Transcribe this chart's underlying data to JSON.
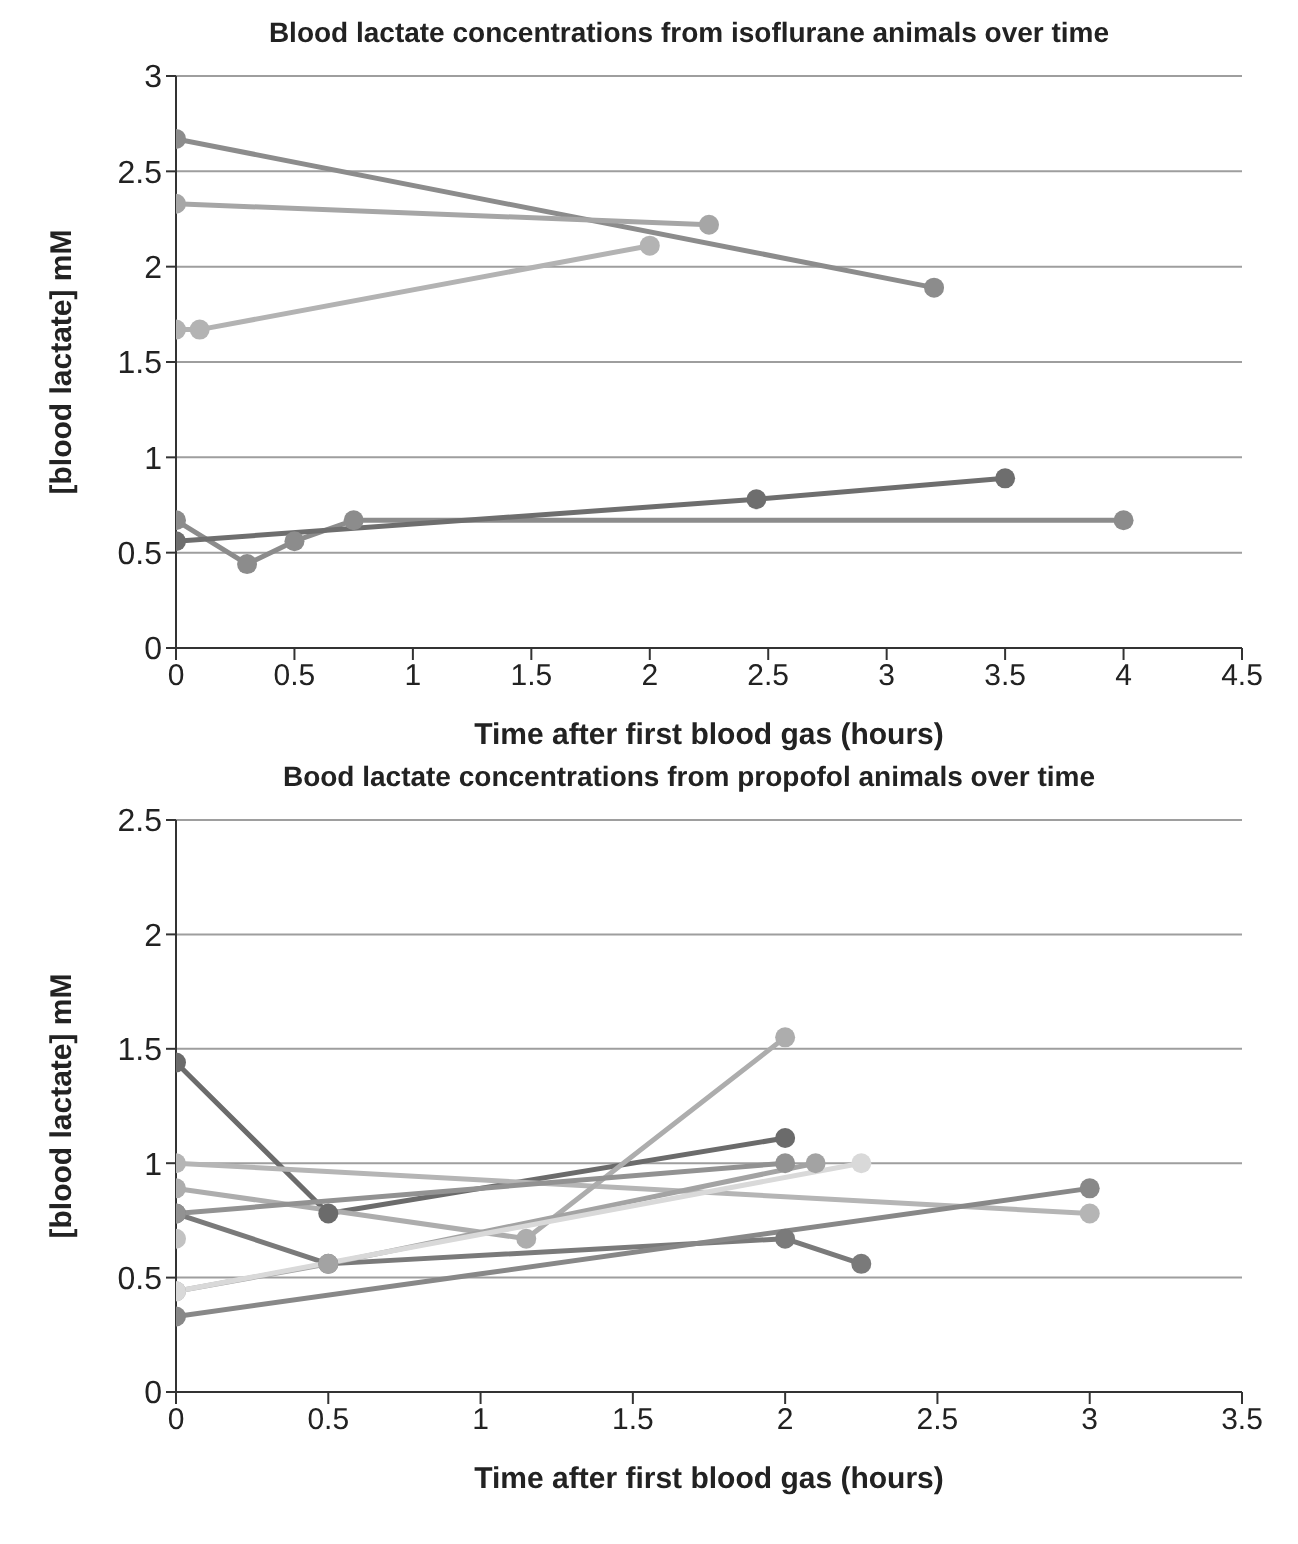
{
  "chart_data": [
    {
      "type": "line",
      "title": "Blood lactate concentrations from isoflurane animals over time",
      "xlabel": "Time after first blood gas (hours)",
      "ylabel": "[blood lactate] mM",
      "xlim": [
        0,
        4.5
      ],
      "xticks": [
        0,
        0.5,
        1,
        1.5,
        2,
        2.5,
        3,
        3.5,
        4,
        4.5
      ],
      "ylim": [
        0,
        3
      ],
      "yticks": [
        0,
        0.5,
        1,
        1.5,
        2,
        2.5,
        3
      ],
      "grid": "y",
      "marker": "circle",
      "series": [
        {
          "color": "#8c8c8c",
          "x": [
            0,
            3.2
          ],
          "values": [
            2.67,
            1.89
          ]
        },
        {
          "color": "#a6a6a6",
          "x": [
            0,
            2.25
          ],
          "values": [
            2.33,
            2.22
          ]
        },
        {
          "color": "#b3b3b3",
          "x": [
            0,
            0.1,
            2
          ],
          "values": [
            1.67,
            1.67,
            2.11
          ]
        },
        {
          "color": "#8c8c8c",
          "x": [
            0,
            0.3,
            0.5,
            0.75,
            4
          ],
          "values": [
            0.67,
            0.44,
            0.56,
            0.67,
            0.67
          ]
        },
        {
          "color": "#6e6e6e",
          "x": [
            0,
            2.45,
            3.5
          ],
          "values": [
            0.56,
            0.78,
            0.89
          ]
        }
      ]
    },
    {
      "type": "line",
      "title": "Bood lactate concentrations from propofol animals over time",
      "xlabel": "Time after first blood gas (hours)",
      "ylabel": "[blood lactate] mM",
      "xlim": [
        0,
        3.5
      ],
      "xticks": [
        0,
        0.5,
        1,
        1.5,
        2,
        2.5,
        3,
        3.5
      ],
      "ylim": [
        0,
        2.5
      ],
      "yticks": [
        0,
        0.5,
        1,
        1.5,
        2,
        2.5
      ],
      "grid": "y",
      "marker": "circle",
      "series": [
        {
          "color": "#6b6b6b",
          "x": [
            0,
            0.5,
            2
          ],
          "values": [
            1.44,
            0.78,
            1.11
          ]
        },
        {
          "color": "#b5b5b5",
          "x": [
            0,
            3
          ],
          "values": [
            1.0,
            0.78
          ]
        },
        {
          "color": "#adadad",
          "x": [
            0,
            1.15,
            2
          ],
          "values": [
            0.89,
            0.67,
            1.55
          ]
        },
        {
          "color": "#7a7a7a",
          "x": [
            0,
            0.5,
            2,
            2.25
          ],
          "values": [
            0.78,
            0.56,
            0.67,
            0.56
          ]
        },
        {
          "color": "#929292",
          "x": [
            0,
            2
          ],
          "values": [
            0.78,
            1.0
          ]
        },
        {
          "color": "#c2c2c2",
          "x": [
            0
          ],
          "values": [
            0.67
          ]
        },
        {
          "color": "#a3a3a3",
          "x": [
            0,
            0.5,
            2.1
          ],
          "values": [
            0.44,
            0.56,
            1.0
          ]
        },
        {
          "color": "#d9d9d9",
          "x": [
            0,
            2.25
          ],
          "values": [
            0.44,
            1.0
          ]
        },
        {
          "color": "#888888",
          "x": [
            0,
            3
          ],
          "values": [
            0.33,
            0.89
          ]
        }
      ]
    }
  ]
}
